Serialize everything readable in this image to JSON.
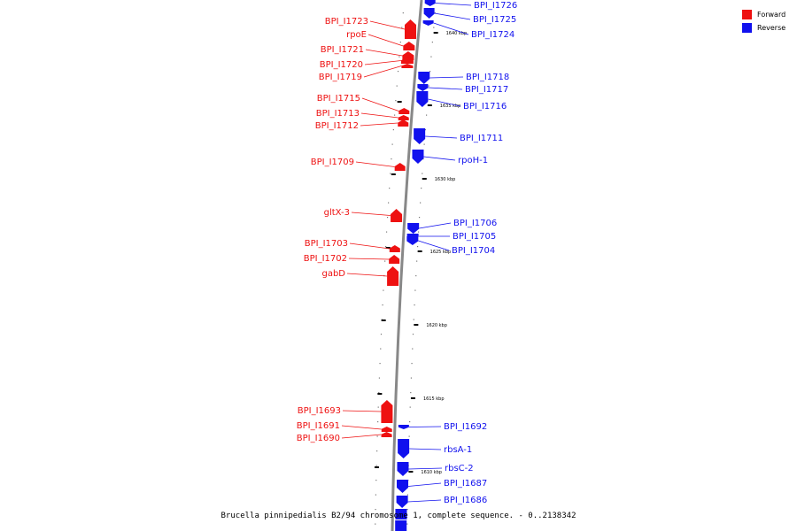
{
  "caption": "Brucella pinnipedialis B2/94 chromosome 1, complete sequence. - 0..2138342",
  "colors": {
    "forward": "#ee1111",
    "reverse": "#1111ee",
    "backbone": "#888888"
  },
  "legend": [
    {
      "label": "Forward",
      "color": "#ee1111"
    },
    {
      "label": "Reverse",
      "color": "#1111ee"
    }
  ],
  "ticks": [
    "1640 kbp",
    "1635 kbp",
    "1630 kbp",
    "1625 kbp",
    "1620 kbp",
    "1615 kbp",
    "1610 kbp"
  ],
  "forward_genes": [
    "BPI_I1723",
    "rpoE",
    "BPI_I1721",
    "BPI_I1720",
    "BPI_I1719",
    "BPI_I1715",
    "BPI_I1713",
    "BPI_I1712",
    "BPI_I1709",
    "gltX-3",
    "BPI_I1703",
    "BPI_I1702",
    "gabD",
    "BPI_I1693",
    "BPI_I1691",
    "BPI_I1690"
  ],
  "reverse_genes": [
    "BPI_I1726",
    "BPI_I1725",
    "BPI_I1724",
    "BPI_I1718",
    "BPI_I1717",
    "BPI_I1716",
    "BPI_I1711",
    "rpoH-1",
    "BPI_I1706",
    "BPI_I1705",
    "BPI_I1704",
    "BPI_I1692",
    "rbsA-1",
    "rbsC-2",
    "BPI_I1687",
    "BPI_I1686"
  ]
}
